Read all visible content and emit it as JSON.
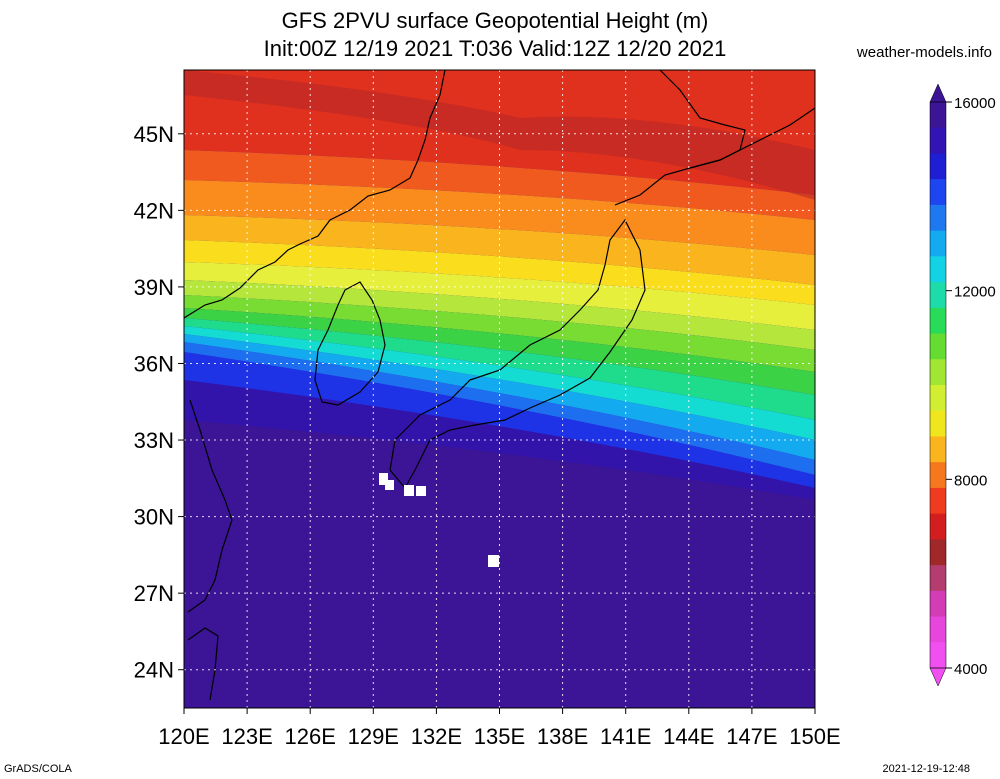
{
  "title": {
    "line1": "GFS 2PVU surface Geopotential Height (m)",
    "line2": "Init:00Z 12/19 2021 T:036 Valid:12Z 12/20 2021"
  },
  "source_site": "weather-models.info",
  "footer": {
    "left": "GrADS/COLA",
    "right": "2021-12-19-12:48"
  },
  "map": {
    "lat_labels": [
      "45N",
      "42N",
      "39N",
      "36N",
      "33N",
      "30N",
      "27N",
      "24N"
    ],
    "lon_labels": [
      "120E",
      "123E",
      "126E",
      "129E",
      "132E",
      "135E",
      "138E",
      "141E",
      "144E",
      "147E",
      "150E"
    ],
    "lat_range": [
      22.5,
      47.5
    ],
    "lon_range": [
      120,
      150
    ],
    "grid": "dotted",
    "bands": [
      {
        "color": "#e0301e"
      },
      {
        "color": "#f05a1e"
      },
      {
        "color": "#fa8c1e"
      },
      {
        "color": "#fab41e"
      },
      {
        "color": "#fade1e"
      },
      {
        "color": "#e6f03c"
      },
      {
        "color": "#b4e63c"
      },
      {
        "color": "#78dc32"
      },
      {
        "color": "#3cd246"
      },
      {
        "color": "#1edc8c"
      },
      {
        "color": "#14dcd2"
      },
      {
        "color": "#14aaf0"
      },
      {
        "color": "#1e6ef0"
      },
      {
        "color": "#1e32e6"
      },
      {
        "color": "#3214aa"
      },
      {
        "color": "#3c1496"
      }
    ]
  },
  "colorbar": {
    "labels": [
      "16000",
      "12000",
      "8000",
      "4000"
    ],
    "colors": [
      "#3c1496",
      "#3214b4",
      "#1e1ed2",
      "#1e46f0",
      "#1e78f0",
      "#14aaf0",
      "#14d2e6",
      "#1edcaa",
      "#28dc5a",
      "#64dc32",
      "#a0e632",
      "#d2ee32",
      "#f0e61e",
      "#fab41e",
      "#f5781e",
      "#f03c1e",
      "#d21e1e",
      "#a02828",
      "#b43c6e",
      "#d23cb4",
      "#e646dc",
      "#f050f0"
    ]
  }
}
